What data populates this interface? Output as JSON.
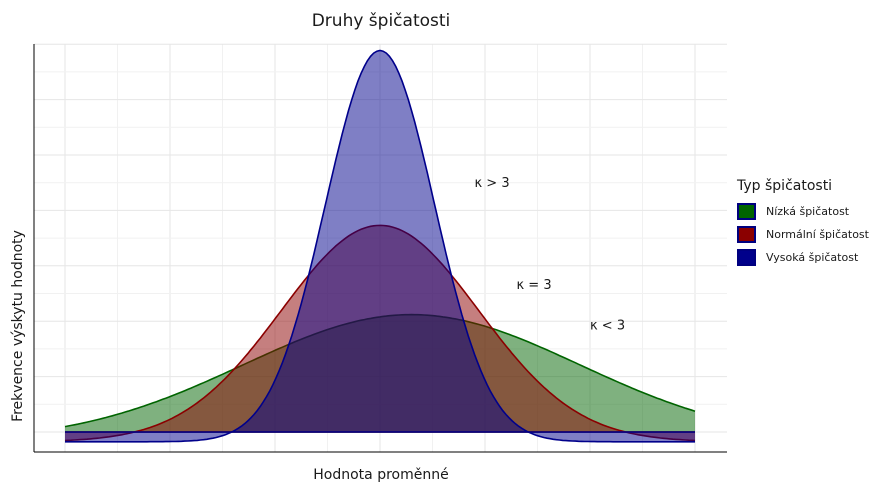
{
  "chart_data": {
    "type": "area",
    "title": "Druhy špičatosti",
    "xlabel": "Hodnota proměnné",
    "ylabel": "Frekvence výskytu hodnoty",
    "xlim": [
      -3,
      3
    ],
    "ylim": [
      -0.02,
      0.78
    ],
    "grid": true,
    "legend_title": "Typ špičatosti",
    "legend_position": "right",
    "series": [
      {
        "name": "Nízká špičatost",
        "fill": "#006400",
        "stroke": "#006400",
        "mean": 0.3,
        "sd": 1.6
      },
      {
        "name": "Normální špičatost",
        "fill": "#8B0000",
        "stroke": "#8B0000",
        "mean": 0,
        "sd": 0.94
      },
      {
        "name": "Vysoká špičatost",
        "fill": "#00008B",
        "stroke": "#00008B",
        "mean": 0,
        "sd": 0.52
      }
    ],
    "annotations": [
      {
        "text": "κ > 3",
        "x": 0.9,
        "y": 0.5
      },
      {
        "text": "κ = 3",
        "x": 1.3,
        "y": 0.3
      },
      {
        "text": "κ < 3",
        "x": 2.0,
        "y": 0.22
      }
    ]
  }
}
